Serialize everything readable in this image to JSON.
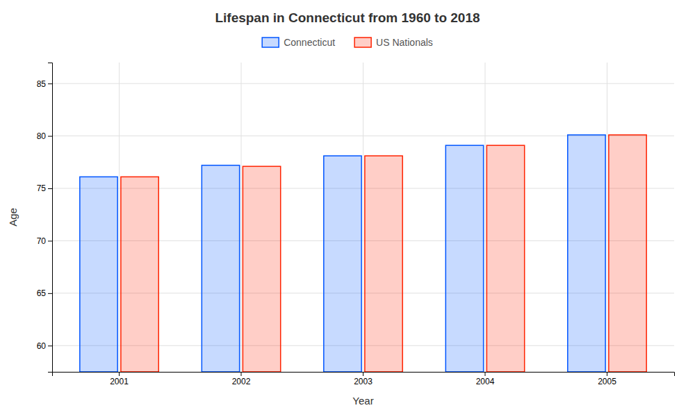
{
  "chart_data": {
    "type": "bar",
    "title": "Lifespan in Connecticut from 1960 to 2018",
    "xlabel": "Year",
    "ylabel": "Age",
    "categories": [
      "2001",
      "2002",
      "2003",
      "2004",
      "2005"
    ],
    "series": [
      {
        "name": "Connecticut",
        "color": "#0055ff",
        "values": [
          76.1,
          77.2,
          78.1,
          79.1,
          80.1
        ]
      },
      {
        "name": "US Nationals",
        "color": "#ff2200",
        "values": [
          76.1,
          77.1,
          78.1,
          79.1,
          80.1
        ]
      }
    ],
    "ylim": [
      57.5,
      87
    ],
    "yticks": [
      60,
      65,
      70,
      75,
      80,
      85
    ],
    "grid": true,
    "legend": "top"
  }
}
